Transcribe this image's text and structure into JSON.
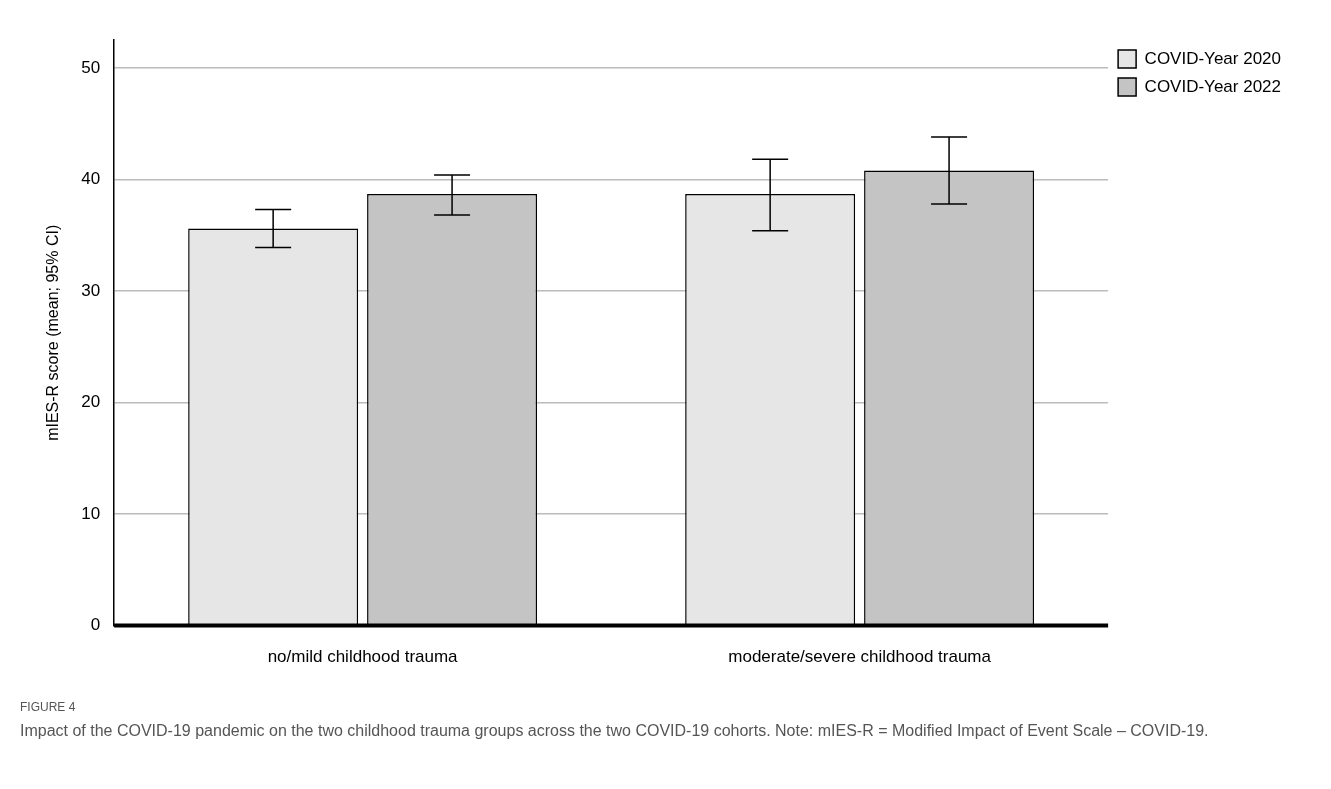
{
  "chart_data": {
    "type": "bar",
    "ylabel": "mIES-R score (mean; 95% CI)",
    "categories": [
      "no/mild childhood trauma",
      "moderate/severe childhood trauma"
    ],
    "series": [
      {
        "name": "COVID-Year 2020",
        "color": "#e6e6e6",
        "values": [
          35.6,
          38.7
        ],
        "errors": [
          [
            33.9,
            37.3
          ],
          [
            35.4,
            41.8
          ]
        ]
      },
      {
        "name": "COVID-Year 2022",
        "color": "#c4c4c4",
        "values": [
          38.7,
          40.8
        ],
        "errors": [
          [
            36.8,
            40.4
          ],
          [
            37.8,
            43.8
          ]
        ]
      }
    ],
    "ylim": [
      0,
      52.5
    ],
    "yticks": [
      0,
      10,
      20,
      30,
      40,
      50
    ],
    "grid": "y",
    "legend": "top right",
    "annotations": [
      "FIGURE 4",
      "Impact of the COVID-19 pandemic on the two childhood trauma groups across the two COVID-19 cohorts. Note: mIES-R = Modified Impact of Event Scale – COVID-19."
    ]
  }
}
